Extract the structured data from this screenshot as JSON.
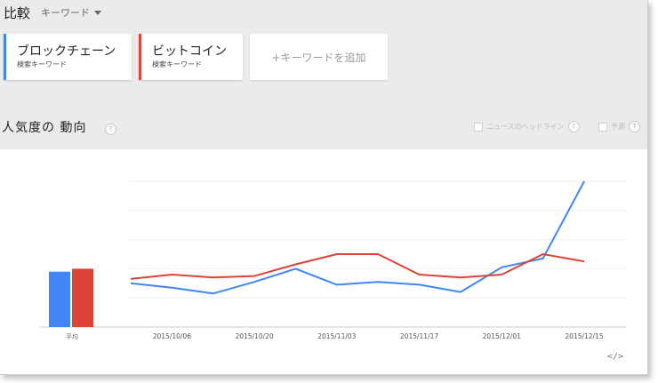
{
  "header": {
    "title": "比較",
    "compare_mode": "キーワード"
  },
  "keywords": [
    {
      "name": "ブロックチェーン",
      "type": "検索キーワード",
      "color": "#4285f4"
    },
    {
      "name": "ビットコイン",
      "type": "検索キーワード",
      "color": "#db4437"
    }
  ],
  "add_keyword_label": "+キーワードを追加",
  "section": {
    "title": "人気度の 動向",
    "help_glyph": "?",
    "options": [
      {
        "label": "ニュースのヘッドライン",
        "checked": false
      },
      {
        "label": "予測",
        "checked": false
      }
    ]
  },
  "embed_label": "</>",
  "chart_data": {
    "type": "line",
    "x": [
      "2015/09/29",
      "2015/10/06",
      "2015/10/13",
      "2015/10/20",
      "2015/10/27",
      "2015/11/03",
      "2015/11/10",
      "2015/11/17",
      "2015/11/24",
      "2015/12/01",
      "2015/12/08",
      "2015/12/15"
    ],
    "x_tick_labels": [
      "2015/10/06",
      "2015/10/20",
      "2015/11/03",
      "2015/11/17",
      "2015/12/01",
      "2015/12/15"
    ],
    "average_label": "平均",
    "ylim": [
      0,
      100
    ],
    "grid": true,
    "series": [
      {
        "key": "blockchain",
        "color": "#4285f4",
        "values": [
          30,
          27,
          23,
          31,
          40,
          29,
          31,
          29,
          24,
          41,
          47,
          100
        ],
        "average": 38
      },
      {
        "key": "bitcoin",
        "color": "#db4437",
        "values": [
          33,
          36,
          34,
          35,
          43,
          50,
          50,
          36,
          34,
          36,
          50,
          45
        ],
        "average": 40
      }
    ]
  }
}
